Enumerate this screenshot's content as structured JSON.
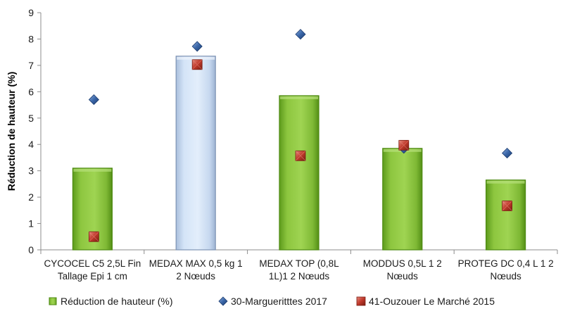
{
  "chart_data": {
    "type": "bar",
    "ylabel": "Réduction de hauteur (%)",
    "ylim": [
      0,
      9
    ],
    "yticks": [
      0,
      1,
      2,
      3,
      4,
      5,
      6,
      7,
      8,
      9
    ],
    "grid": false,
    "legend_position": "bottom",
    "categories": [
      [
        "CYCOCEL C5 2,5L Fin",
        "Tallage Epi 1 cm"
      ],
      [
        "MEDAX MAX 0,5 kg 1",
        "2 Nœuds"
      ],
      [
        "MEDAX TOP (0,8L",
        "1L)1 2 Nœuds"
      ],
      [
        "MODDUS 0,5L 1 2",
        "Nœuds"
      ],
      [
        "PROTEG DC 0,4 L 1 2",
        "Nœuds"
      ]
    ],
    "bar_fills": [
      "green",
      "blue",
      "green",
      "green",
      "green"
    ],
    "series": [
      {
        "name": "Réduction de hauteur (%)",
        "kind": "bar",
        "values": [
          3.1,
          7.35,
          5.85,
          3.85,
          2.65
        ],
        "color": "#8cc63f"
      },
      {
        "name": "30-Margueritttes 2017",
        "kind": "marker-diamond",
        "values": [
          5.7,
          7.72,
          8.18,
          3.85,
          3.67
        ],
        "color": "#3a66a8"
      },
      {
        "name": "41-Ouzouer Le Marché 2015",
        "kind": "marker-square",
        "values": [
          0.5,
          7.03,
          3.57,
          3.97,
          1.67
        ],
        "color": "#c0392b"
      }
    ],
    "colors": {
      "bar_green": "#8cc63f",
      "bar_green_dark": "#4e8a12",
      "bar_blue": "#cfe0f6",
      "bar_blue_dark": "#7f94b4",
      "diamond": "#3a66a8",
      "square": "#c0392b"
    }
  }
}
